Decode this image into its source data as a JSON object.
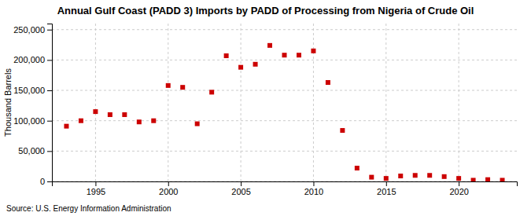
{
  "chart_data": {
    "type": "scatter",
    "title": "Annual Gulf Coast (PADD 3) Imports by PADD of Processing from Nigeria of Crude Oil",
    "ylabel": "Thousand Barrels",
    "annotations": [
      "Source: U.S. Energy Information Administration"
    ],
    "x": [
      1993,
      1994,
      1995,
      1996,
      1997,
      1998,
      1999,
      2000,
      2001,
      2002,
      2003,
      2004,
      2005,
      2006,
      2007,
      2008,
      2009,
      2010,
      2011,
      2012,
      2013,
      2014,
      2015,
      2016,
      2017,
      2018,
      2019,
      2020,
      2021,
      2022,
      2023
    ],
    "values": [
      91000,
      100000,
      115000,
      110000,
      110000,
      98000,
      100000,
      158000,
      155000,
      95000,
      147000,
      207000,
      188000,
      193000,
      224000,
      208000,
      208000,
      215000,
      163000,
      84000,
      22000,
      7000,
      5000,
      9000,
      10000,
      10000,
      8000,
      5000,
      2000,
      3000,
      2000
    ],
    "color": "#cc0000",
    "marker": "square",
    "xlim": [
      1992,
      2024
    ],
    "xticks": [
      1995,
      2000,
      2005,
      2010,
      2015,
      2020
    ],
    "ylim": [
      0,
      260000
    ],
    "yticks": [
      0,
      {
        "value": 50000,
        "label": "50,000"
      },
      {
        "value": 100000,
        "label": "100,000"
      },
      {
        "value": 150000,
        "label": "150,000"
      },
      {
        "value": 200000,
        "label": "200,000"
      },
      {
        "value": 250000,
        "label": "250,000"
      }
    ],
    "grid": true
  }
}
